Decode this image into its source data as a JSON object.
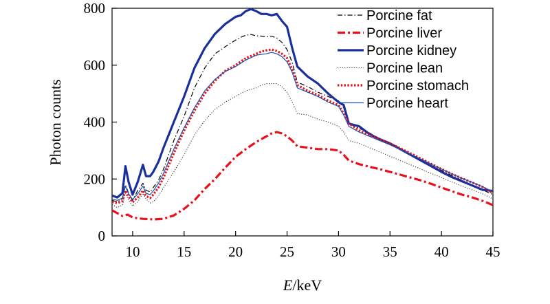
{
  "chart_data": {
    "type": "line",
    "xlabel_italic": "E",
    "xlabel_rest": "/keV",
    "ylabel": "Photon counts",
    "xlim": [
      8,
      45
    ],
    "ylim": [
      0,
      800
    ],
    "xticks": [
      10,
      15,
      20,
      25,
      30,
      35,
      40,
      45
    ],
    "yticks": [
      0,
      200,
      400,
      600,
      800
    ],
    "grid": false,
    "legend_position": "top-right",
    "series": [
      {
        "name": "Porcine fat",
        "color": "#000000",
        "style": "dashdot",
        "x": [
          8,
          8.5,
          9,
          9.3,
          9.6,
          10,
          10.5,
          11,
          11.3,
          11.7,
          12,
          12.5,
          13,
          14,
          15,
          16,
          17,
          18,
          19,
          20,
          20.5,
          21,
          21.5,
          22,
          22.5,
          23,
          23.5,
          24,
          24.5,
          25,
          25.5,
          26,
          27,
          28,
          29,
          30,
          30.5,
          31,
          32,
          33,
          34,
          35,
          36,
          37,
          38,
          39,
          40,
          41,
          42,
          43,
          44,
          45
        ],
        "y": [
          125,
          120,
          130,
          180,
          150,
          125,
          160,
          185,
          160,
          155,
          170,
          195,
          235,
          335,
          420,
          520,
          590,
          640,
          665,
          688,
          698,
          705,
          708,
          703,
          702,
          700,
          702,
          695,
          680,
          655,
          610,
          540,
          525,
          505,
          490,
          475,
          450,
          395,
          378,
          362,
          340,
          322,
          305,
          288,
          268,
          248,
          230,
          212,
          195,
          178,
          162,
          145
        ]
      },
      {
        "name": "Porcine liver",
        "color": "#e8101c",
        "style": "dashed",
        "x": [
          8,
          8.5,
          9,
          9.5,
          10,
          10.5,
          11,
          12,
          13,
          14,
          15,
          16,
          17,
          18,
          19,
          20,
          21,
          22,
          23,
          23.5,
          24,
          24.5,
          25,
          25.5,
          26,
          27,
          28,
          29,
          30,
          30.5,
          31,
          32,
          33,
          34,
          35,
          36,
          37,
          38,
          39,
          40,
          41,
          42,
          43,
          44,
          45
        ],
        "y": [
          90,
          80,
          70,
          75,
          65,
          62,
          60,
          58,
          60,
          72,
          95,
          125,
          165,
          200,
          240,
          278,
          305,
          330,
          350,
          360,
          365,
          360,
          350,
          335,
          315,
          310,
          305,
          305,
          300,
          285,
          265,
          252,
          243,
          235,
          225,
          215,
          205,
          195,
          183,
          170,
          157,
          145,
          135,
          123,
          108
        ]
      },
      {
        "name": "Porcine kidney",
        "color": "#1a2f9c",
        "style": "solid-thick",
        "x": [
          8,
          8.5,
          9,
          9.3,
          9.6,
          10,
          10.5,
          11,
          11.3,
          11.7,
          12,
          12.5,
          13,
          14,
          15,
          16,
          17,
          18,
          19,
          20,
          20.5,
          21,
          21.5,
          22,
          22.5,
          23,
          23.5,
          24,
          24.5,
          25,
          25.5,
          26,
          27,
          28,
          29,
          30,
          30.5,
          31,
          32,
          33,
          34,
          35,
          36,
          37,
          38,
          39,
          40,
          41,
          42,
          43,
          44,
          45
        ],
        "y": [
          142,
          135,
          150,
          245,
          190,
          145,
          190,
          250,
          210,
          210,
          225,
          260,
          310,
          400,
          490,
          590,
          660,
          710,
          745,
          770,
          775,
          790,
          797,
          790,
          780,
          780,
          775,
          780,
          755,
          735,
          660,
          595,
          560,
          535,
          500,
          470,
          460,
          395,
          385,
          358,
          340,
          325,
          305,
          285,
          265,
          245,
          225,
          207,
          192,
          177,
          162,
          158
        ]
      },
      {
        "name": "Porcine lean",
        "color": "#333333",
        "style": "dotted",
        "x": [
          8,
          8.5,
          9,
          9.3,
          9.6,
          10,
          10.5,
          11,
          11.3,
          11.7,
          12,
          12.5,
          13,
          14,
          15,
          16,
          17,
          18,
          19,
          20,
          21,
          22,
          22.5,
          23,
          23.5,
          24,
          24.5,
          25,
          25.5,
          26,
          27,
          28,
          29,
          30,
          30.5,
          31,
          32,
          33,
          34,
          35,
          36,
          37,
          38,
          39,
          40,
          41,
          42,
          43,
          44,
          45
        ],
        "y": [
          110,
          100,
          108,
          150,
          125,
          105,
          120,
          150,
          130,
          115,
          120,
          140,
          170,
          225,
          285,
          355,
          405,
          445,
          470,
          490,
          510,
          520,
          530,
          535,
          535,
          535,
          525,
          505,
          470,
          430,
          425,
          410,
          400,
          385,
          365,
          335,
          325,
          310,
          295,
          280,
          265,
          250,
          235,
          220,
          205,
          190,
          175,
          162,
          148,
          130
        ]
      },
      {
        "name": "Porcine stomach",
        "color": "#e8101c",
        "style": "dotted-thick",
        "x": [
          8,
          8.5,
          9,
          9.3,
          9.6,
          10,
          10.5,
          11,
          11.3,
          11.7,
          12,
          12.5,
          13,
          14,
          15,
          16,
          17,
          18,
          19,
          20,
          21,
          22,
          22.5,
          23,
          23.5,
          24,
          24.5,
          25,
          25.5,
          26,
          27,
          28,
          29,
          30,
          30.5,
          31,
          32,
          33,
          34,
          35,
          36,
          37,
          38,
          39,
          40,
          41,
          42,
          43,
          44,
          45
        ],
        "y": [
          120,
          115,
          122,
          160,
          138,
          118,
          135,
          160,
          140,
          133,
          145,
          170,
          205,
          290,
          370,
          440,
          500,
          545,
          580,
          600,
          625,
          640,
          648,
          652,
          655,
          650,
          640,
          625,
          585,
          530,
          510,
          495,
          475,
          460,
          430,
          395,
          370,
          355,
          340,
          325,
          308,
          290,
          272,
          253,
          235,
          218,
          202,
          187,
          172,
          150
        ]
      },
      {
        "name": "Porcine heart",
        "color": "#1a4fa8",
        "style": "solid-thin",
        "x": [
          8,
          8.5,
          9,
          9.3,
          9.6,
          10,
          10.5,
          11,
          11.3,
          11.7,
          12,
          12.5,
          13,
          14,
          15,
          16,
          17,
          18,
          19,
          20,
          21,
          22,
          22.5,
          23,
          23.5,
          24,
          24.5,
          25,
          25.5,
          26,
          27,
          28,
          29,
          30,
          30.5,
          31,
          32,
          33,
          34,
          35,
          36,
          37,
          38,
          39,
          40,
          41,
          42,
          43,
          44,
          45
        ],
        "y": [
          130,
          125,
          133,
          175,
          148,
          128,
          148,
          175,
          150,
          145,
          158,
          185,
          220,
          305,
          380,
          450,
          510,
          550,
          578,
          595,
          618,
          635,
          638,
          640,
          645,
          640,
          630,
          612,
          575,
          520,
          505,
          490,
          470,
          455,
          425,
          385,
          365,
          350,
          335,
          320,
          303,
          287,
          270,
          252,
          235,
          218,
          202,
          188,
          173,
          155
        ]
      }
    ]
  }
}
